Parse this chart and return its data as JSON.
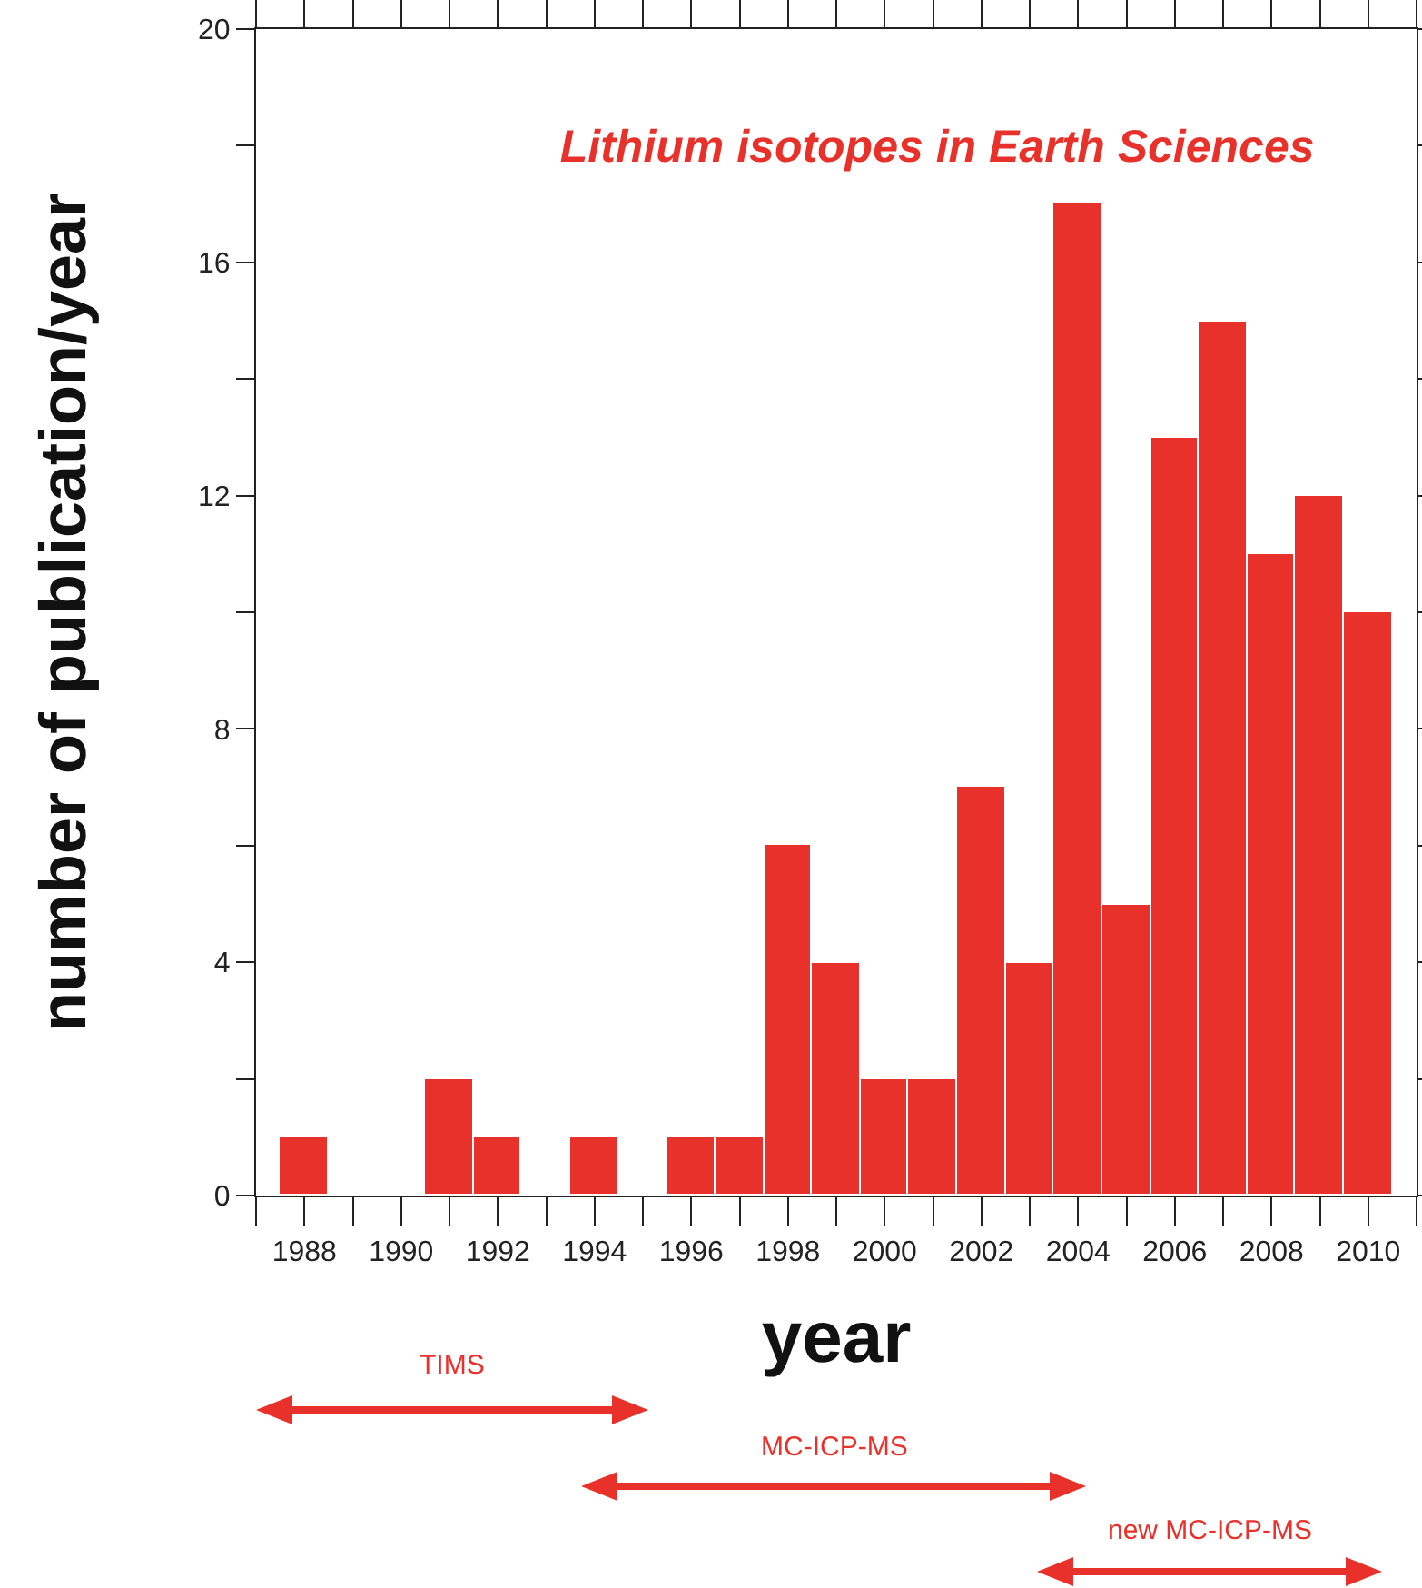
{
  "chart_data": {
    "type": "bar",
    "title": "Lithium isotopes in Earth Sciences",
    "xlabel": "year",
    "ylabel": "number of publication/year",
    "x": [
      1988,
      1989,
      1990,
      1991,
      1992,
      1993,
      1994,
      1995,
      1996,
      1997,
      1998,
      1999,
      2000,
      2001,
      2002,
      2003,
      2004,
      2005,
      2006,
      2007,
      2008,
      2009,
      2010
    ],
    "values": [
      1,
      0,
      0,
      2,
      1,
      0,
      1,
      0,
      1,
      1,
      6,
      4,
      2,
      2,
      7,
      4,
      17,
      5,
      13,
      15,
      11,
      12,
      10
    ],
    "color": "#e8312a",
    "xlim": [
      1987,
      2011
    ],
    "xticks": [
      {
        "value": 1987,
        "label": null
      },
      1988,
      {
        "value": 1989,
        "label": null
      },
      1990,
      {
        "value": 1991,
        "label": null
      },
      1992,
      {
        "value": 1993,
        "label": null
      },
      1994,
      {
        "value": 1995,
        "label": null
      },
      1996,
      {
        "value": 1997,
        "label": null
      },
      1998,
      {
        "value": 1999,
        "label": null
      },
      2000,
      {
        "value": 2001,
        "label": null
      },
      2002,
      {
        "value": 2003,
        "label": null
      },
      2004,
      {
        "value": 2005,
        "label": null
      },
      2006,
      {
        "value": 2007,
        "label": null
      },
      2008,
      {
        "value": 2009,
        "label": null
      },
      2010,
      {
        "value": 2011,
        "label": null
      }
    ],
    "ylim": [
      0,
      20
    ],
    "yticks": [
      0,
      {
        "value": 2,
        "label": null
      },
      4,
      {
        "value": 6,
        "label": null
      },
      8,
      {
        "value": 10,
        "label": null
      },
      12,
      {
        "value": 14,
        "label": null
      },
      16,
      {
        "value": 18,
        "label": null
      },
      20
    ],
    "annotations": [
      "TIMS",
      "MC-ICP-MS",
      "new MC-ICP-MS"
    ],
    "grid": false
  }
}
